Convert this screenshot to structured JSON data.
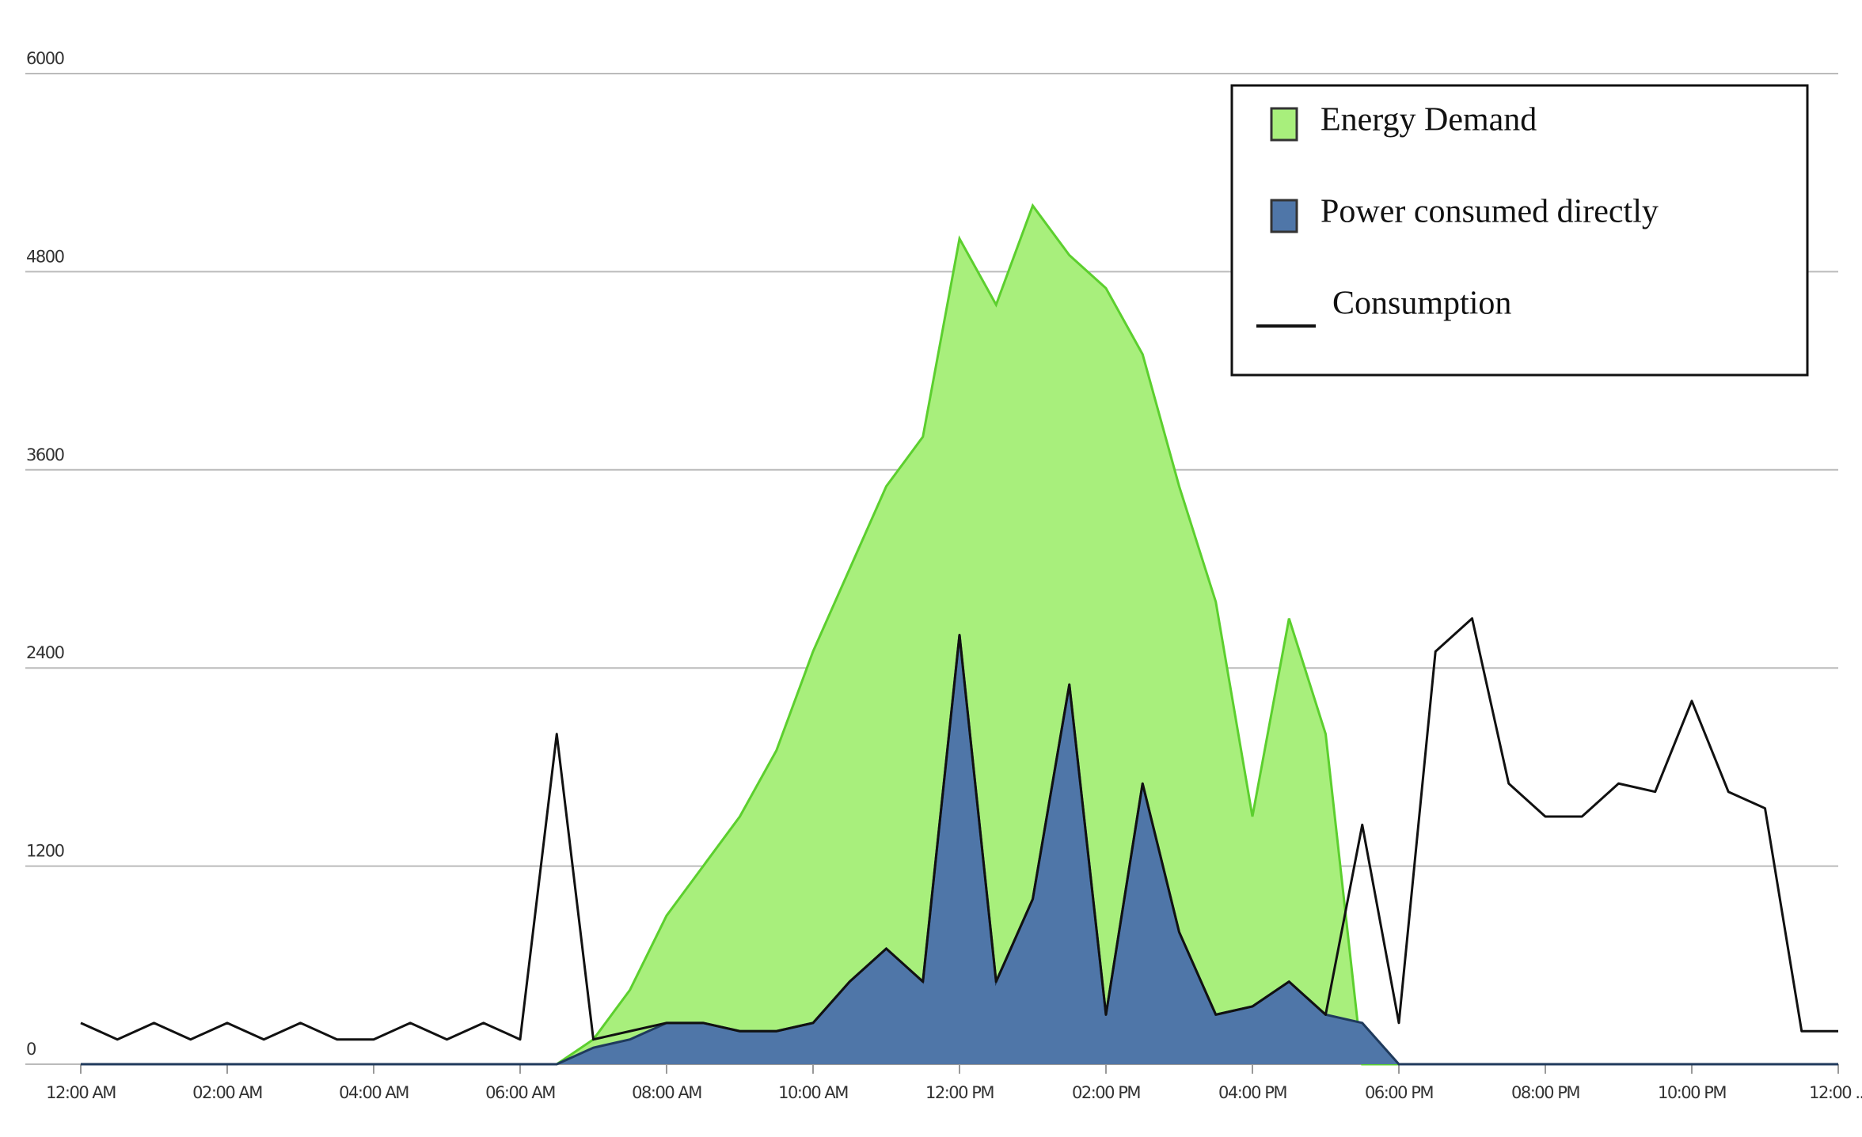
{
  "chart_data": {
    "type": "area",
    "x": [
      0,
      0.5,
      1,
      1.5,
      2,
      2.5,
      3,
      3.5,
      4,
      4.5,
      5,
      5.5,
      6,
      6.5,
      7,
      7.5,
      8,
      8.5,
      9,
      9.5,
      10,
      10.5,
      11,
      11.5,
      12,
      12.5,
      13,
      13.5,
      14,
      14.5,
      15,
      15.5,
      16,
      16.5,
      17,
      17.5,
      18,
      18.5,
      19,
      19.5,
      20,
      20.5,
      21,
      21.5,
      22,
      22.5,
      23,
      23.5,
      24
    ],
    "xlim": [
      0,
      24
    ],
    "xticks": [
      {
        "value": 0,
        "label": "12:00 AM"
      },
      {
        "value": 2,
        "label": "02:00 AM"
      },
      {
        "value": 4,
        "label": "04:00 AM"
      },
      {
        "value": 6,
        "label": "06:00 AM"
      },
      {
        "value": 8,
        "label": "08:00 AM"
      },
      {
        "value": 10,
        "label": "10:00 AM"
      },
      {
        "value": 12,
        "label": "12:00 PM"
      },
      {
        "value": 14,
        "label": "02:00 PM"
      },
      {
        "value": 16,
        "label": "04:00 PM"
      },
      {
        "value": 18,
        "label": "06:00 PM"
      },
      {
        "value": 20,
        "label": "08:00 PM"
      },
      {
        "value": 22,
        "label": "10:00 PM"
      },
      {
        "value": 24,
        "label": "12:00 ..."
      }
    ],
    "ylim": [
      0,
      6000
    ],
    "yticks": [
      0,
      1200,
      2400,
      3600,
      4800,
      6000
    ],
    "grid": true,
    "legend": "top-right",
    "series": [
      {
        "name": "Energy Demand",
        "style": "area",
        "color": "#a8ef7c",
        "stroke": "#5ccf2e",
        "values": [
          0,
          0,
          0,
          0,
          0,
          0,
          0,
          0,
          0,
          0,
          0,
          0,
          0,
          0,
          150,
          450,
          900,
          1200,
          1500,
          1900,
          2500,
          3000,
          3500,
          3800,
          5000,
          4600,
          5200,
          4900,
          4700,
          4300,
          3500,
          2800,
          1500,
          2700,
          2000,
          0,
          0,
          0,
          0,
          0,
          0,
          0,
          0,
          0,
          0,
          0,
          0,
          0,
          0
        ]
      },
      {
        "name": "Power consumed directly",
        "style": "area",
        "color": "#4f76a8",
        "stroke": "#1f3a5c",
        "values": [
          0,
          0,
          0,
          0,
          0,
          0,
          0,
          0,
          0,
          0,
          0,
          0,
          0,
          0,
          100,
          150,
          250,
          250,
          200,
          200,
          250,
          500,
          700,
          500,
          2600,
          500,
          1000,
          2300,
          300,
          1700,
          800,
          300,
          350,
          500,
          300,
          250,
          0,
          0,
          0,
          0,
          0,
          0,
          0,
          0,
          0,
          0,
          0,
          0,
          0
        ]
      },
      {
        "name": "Consumption",
        "style": "line",
        "color": "#111111",
        "values": [
          250,
          150,
          250,
          150,
          250,
          150,
          250,
          150,
          150,
          250,
          150,
          250,
          150,
          2000,
          150,
          200,
          250,
          250,
          200,
          200,
          250,
          500,
          700,
          500,
          2600,
          500,
          1000,
          2300,
          300,
          1700,
          800,
          300,
          350,
          500,
          300,
          1450,
          250,
          2500,
          2700,
          1700,
          1500,
          1500,
          1700,
          1650,
          2200,
          1650,
          1550,
          200,
          200
        ]
      }
    ]
  }
}
